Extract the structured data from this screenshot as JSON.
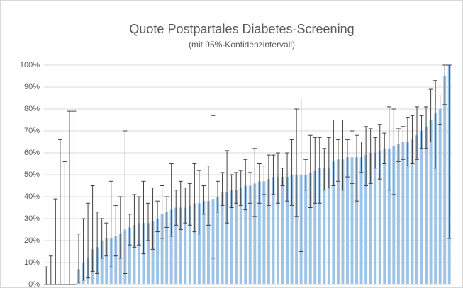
{
  "chart_data": {
    "type": "bar",
    "title": "Quote Postpartales Diabetes-Screening",
    "subtitle": "(mit 95%-Konfidenzintervall)",
    "color": "#9dc3e6",
    "error_color": "#404040",
    "grid": true,
    "ylim": [
      0,
      100
    ],
    "yticks": [
      {
        "value": 0,
        "label": "0%"
      },
      {
        "value": 10,
        "label": "10%"
      },
      {
        "value": 20,
        "label": "20%"
      },
      {
        "value": 30,
        "label": "30%"
      },
      {
        "value": 40,
        "label": "40%"
      },
      {
        "value": 50,
        "label": "50%"
      },
      {
        "value": 60,
        "label": "60%"
      },
      {
        "value": 70,
        "label": "70%"
      },
      {
        "value": 80,
        "label": "80%"
      },
      {
        "value": 90,
        "label": "90%"
      },
      {
        "value": 100,
        "label": "100%"
      }
    ],
    "values": [
      0,
      0,
      0,
      0,
      0,
      0,
      0,
      7,
      10,
      12,
      16,
      17,
      20,
      21,
      21,
      22,
      23,
      25,
      26,
      27,
      28,
      28,
      28,
      29,
      30,
      32,
      33,
      34,
      35,
      35,
      35,
      36,
      37,
      37,
      38,
      38,
      39,
      40,
      42,
      42,
      43,
      43,
      44,
      45,
      45,
      46,
      47,
      47,
      48,
      49,
      49,
      49,
      49,
      50,
      50,
      50,
      50,
      51,
      52,
      53,
      53,
      53,
      56,
      57,
      57,
      58,
      58,
      58,
      58,
      59,
      60,
      60,
      61,
      62,
      62,
      63,
      64,
      65,
      65,
      66,
      68,
      70,
      72,
      75,
      78,
      80,
      95,
      100
    ],
    "ci_lower": [
      0,
      0,
      0,
      0,
      0,
      0,
      0,
      1,
      2,
      3,
      6,
      5,
      12,
      13,
      8,
      13,
      12,
      5,
      18,
      17,
      18,
      14,
      20,
      16,
      24,
      21,
      26,
      22,
      27,
      25,
      28,
      27,
      24,
      23,
      32,
      27,
      12,
      33,
      36,
      28,
      35,
      37,
      36,
      34,
      37,
      31,
      37,
      41,
      36,
      41,
      37,
      45,
      38,
      36,
      31,
      15,
      43,
      35,
      37,
      37,
      43,
      44,
      45,
      47,
      43,
      49,
      46,
      38,
      51,
      45,
      46,
      53,
      48,
      55,
      43,
      41,
      56,
      57,
      54,
      55,
      57,
      62,
      62,
      65,
      53,
      73,
      82,
      21
    ],
    "ci_upper": [
      8,
      13,
      39,
      66,
      56,
      79,
      79,
      23,
      30,
      37,
      45,
      33,
      30,
      28,
      47,
      36,
      40,
      70,
      32,
      41,
      40,
      47,
      37,
      44,
      38,
      45,
      40,
      55,
      43,
      47,
      44,
      46,
      55,
      52,
      45,
      54,
      77,
      47,
      51,
      61,
      50,
      51,
      52,
      57,
      51,
      62,
      55,
      54,
      59,
      59,
      60,
      53,
      60,
      66,
      80,
      85,
      57,
      68,
      67,
      67,
      62,
      67,
      75,
      66,
      75,
      66,
      70,
      68,
      65,
      72,
      71,
      67,
      73,
      69,
      81,
      80,
      71,
      72,
      76,
      77,
      81,
      77,
      81,
      89,
      93,
      86,
      100,
      100
    ]
  }
}
